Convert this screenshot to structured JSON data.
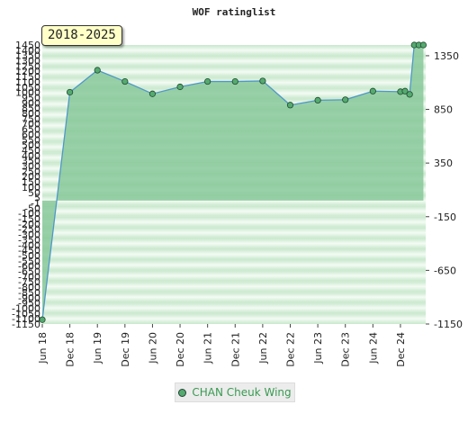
{
  "chart_data": {
    "type": "area",
    "title": "WOF ratinglist",
    "period_label": "2018-2025",
    "left_axis": {
      "ylim": [
        -1150,
        1450
      ],
      "ticks": [
        "1450",
        "1400",
        "1350",
        "1300",
        "1250",
        "1200",
        "1150",
        "1100",
        "1050",
        "1000",
        "950",
        "900",
        "850",
        "800",
        "750",
        "700",
        "650",
        "600",
        "550",
        "500",
        "450",
        "400",
        "350",
        "300",
        "250",
        "200",
        "150",
        "100",
        "50",
        "5",
        "-1",
        "-50",
        "-100",
        "-150",
        "-200",
        "-250",
        "-300",
        "-350",
        "-400",
        "-450",
        "-500",
        "-550",
        "-600",
        "-650",
        "-700",
        "-750",
        "-800",
        "-850",
        "-900",
        "-950",
        "-1000",
        "-1050",
        "-1100",
        "-1150"
      ]
    },
    "right_axis": {
      "ticks": [
        1350,
        850,
        350,
        -150,
        -650,
        -1150
      ],
      "tick_labels": [
        "1350",
        "850",
        "350",
        "-150",
        "-650",
        "-1150"
      ]
    },
    "x_ticks": [
      "Jun 18",
      "Dec 18",
      "Jun 19",
      "Dec 19",
      "Jun 20",
      "Dec 20",
      "Jun 21",
      "Dec 21",
      "Jun 22",
      "Dec 22",
      "Jun 23",
      "Dec 23",
      "Jun 24",
      "Dec 24"
    ],
    "x_tick_positions": [
      0,
      6,
      12,
      18,
      24,
      30,
      36,
      42,
      48,
      54,
      60,
      66,
      72,
      78
    ],
    "xlim": [
      0,
      83.5
    ],
    "series": [
      {
        "name": "CHAN Cheuk Wing",
        "points": [
          [
            0,
            -1110
          ],
          [
            6,
            1010
          ],
          [
            12,
            1215
          ],
          [
            18,
            1110
          ],
          [
            24,
            995
          ],
          [
            30,
            1060
          ],
          [
            36,
            1110
          ],
          [
            42,
            1110
          ],
          [
            48,
            1115
          ],
          [
            54,
            890
          ],
          [
            60,
            935
          ],
          [
            66,
            940
          ],
          [
            72,
            1020
          ],
          [
            78,
            1015
          ],
          [
            79,
            1020
          ],
          [
            80,
            990
          ],
          [
            81,
            1450
          ],
          [
            82,
            1450
          ],
          [
            83,
            1450
          ]
        ]
      }
    ],
    "colors": {
      "fill": "#88c89a",
      "line": "#4f98c8",
      "marker": "#55aa70",
      "band_dark": "#c8e8cc",
      "band_light": "#f4fbf4"
    },
    "grid": true,
    "legend_position": "bottom"
  }
}
